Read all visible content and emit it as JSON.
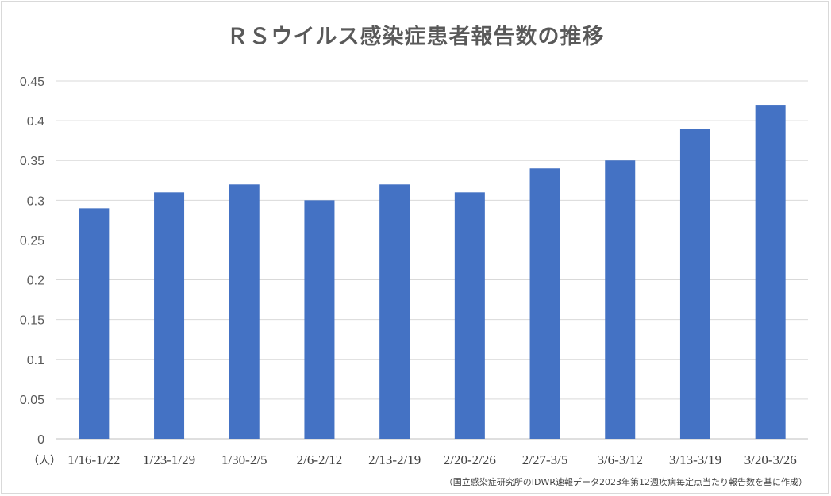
{
  "chart_data": {
    "type": "bar",
    "title": "ＲＳウイルス感染症患者報告数の推移",
    "unit_label": "（人）",
    "categories": [
      "1/16-1/22",
      "1/23-1/29",
      "1/30-2/5",
      "2/6-2/12",
      "2/13-2/19",
      "2/20-2/26",
      "2/27-3/5",
      "3/6-3/12",
      "3/13-3/19",
      "3/20-3/26"
    ],
    "series": [
      {
        "values": [
          0.29,
          0.31,
          0.32,
          0.3,
          0.32,
          0.31,
          0.34,
          0.35,
          0.39,
          0.42
        ]
      }
    ],
    "ylim": [
      0,
      0.45
    ],
    "yticks": [
      "0",
      "0.05",
      "0.1",
      "0.15",
      "0.2",
      "0.25",
      "0.3",
      "0.35",
      "0.4",
      "0.45"
    ],
    "grid": true,
    "legend": "none",
    "bar_color": "#4472c4",
    "source": "（国立感染症研究所のIDWR速報データ2023年第12週疾病毎定点当たり報告数を基に作成）"
  }
}
